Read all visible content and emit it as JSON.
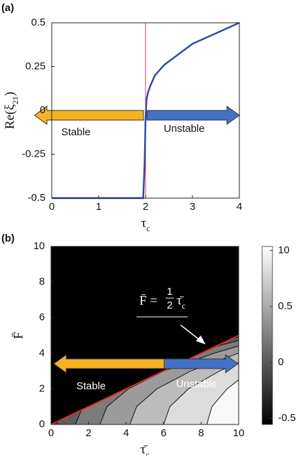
{
  "chart_data": [
    {
      "type": "line",
      "panel": "(a)",
      "x_label": {
        "symbol": "τ",
        "subscript": "c"
      },
      "y_label": {
        "prefix": "Re(ξ",
        "subscript": "21",
        "suffix": ")"
      },
      "xlim": [
        0,
        4
      ],
      "ylim": [
        -0.5,
        0.5
      ],
      "xticks": [
        0,
        1,
        2,
        3,
        4
      ],
      "yticks": [
        -0.5,
        -0.25,
        0,
        0.25,
        0.5
      ],
      "series": [
        {
          "color": "#2e4aa8",
          "x": [
            0,
            1.9,
            1.95,
            1.98,
            2.0,
            2.02,
            2.05,
            2.1,
            2.2,
            2.4,
            2.6,
            2.8,
            3.0,
            3.25,
            3.5,
            3.75,
            4.0
          ],
          "values": [
            -0.5,
            -0.5,
            -0.5,
            -0.3,
            -0.05,
            0.06,
            0.1,
            0.14,
            0.2,
            0.26,
            0.3,
            0.34,
            0.38,
            0.41,
            0.44,
            0.47,
            0.5
          ]
        }
      ],
      "vline": {
        "x": 2,
        "color": "#e5336b"
      },
      "annotations": [
        {
          "text": "Stable",
          "color": "#f5b324"
        },
        {
          "text": "Unstable",
          "color": "#4472c4"
        }
      ]
    },
    {
      "type": "contour",
      "panel": "(b)",
      "x_label": {
        "symbol": "τ̄",
        "subscript": "c"
      },
      "y_label": "F̄",
      "xlim": [
        0,
        10
      ],
      "ylim": [
        0,
        10
      ],
      "xticks": [
        0,
        2,
        4,
        6,
        8,
        10
      ],
      "yticks": [
        0,
        2,
        4,
        6,
        8,
        10
      ],
      "background": "#000000",
      "base_color": "#3e3e3e",
      "contours": [
        {
          "color": "#5e5e5e",
          "x": [
            0.3,
            0.7,
            1.9,
            3.9,
            6.7,
            8.4,
            10
          ],
          "y": [
            0,
            1,
            2,
            3,
            4,
            4.5,
            4.92
          ]
        },
        {
          "color": "#7c7c7c",
          "x": [
            1.3,
            1.69,
            2.86,
            4.81,
            7.54,
            9.2,
            10
          ],
          "y": [
            0,
            1,
            2,
            3,
            4,
            4.5,
            4.72
          ]
        },
        {
          "color": "#9b9b9b",
          "x": [
            2.6,
            2.98,
            4.12,
            6.02,
            8.68,
            10
          ],
          "y": [
            0,
            1,
            2,
            3,
            4,
            4.41
          ]
        },
        {
          "color": "#bcbcbc",
          "x": [
            4.2,
            4.56,
            5.64,
            7.44,
            10
          ],
          "y": [
            0,
            1,
            2,
            3,
            4.01
          ]
        },
        {
          "color": "#dcdcdc",
          "x": [
            6.0,
            6.33,
            7.32,
            8.97,
            10
          ],
          "y": [
            0,
            1,
            2,
            3,
            3.48
          ]
        },
        {
          "color": "#f8f8f8",
          "x": [
            8.3,
            8.57,
            9.38,
            10
          ],
          "y": [
            0,
            1,
            2,
            2.51
          ]
        }
      ],
      "boundary": {
        "slope": 0.5,
        "color": "#e8262b",
        "label": {
          "lhs": "F̄ =",
          "numerator": "1",
          "denominator": "2",
          "symbol": "τ̄",
          "subscript": "c"
        }
      },
      "colorbar": {
        "ticks": [
          -0.5,
          0,
          0.5,
          10
        ],
        "colors": [
          "#000000",
          "#ffffff"
        ]
      },
      "annotations": [
        {
          "text": "Stable",
          "color": "#f5b324"
        },
        {
          "text": "Unstable",
          "color": "#4472c4"
        }
      ]
    }
  ]
}
